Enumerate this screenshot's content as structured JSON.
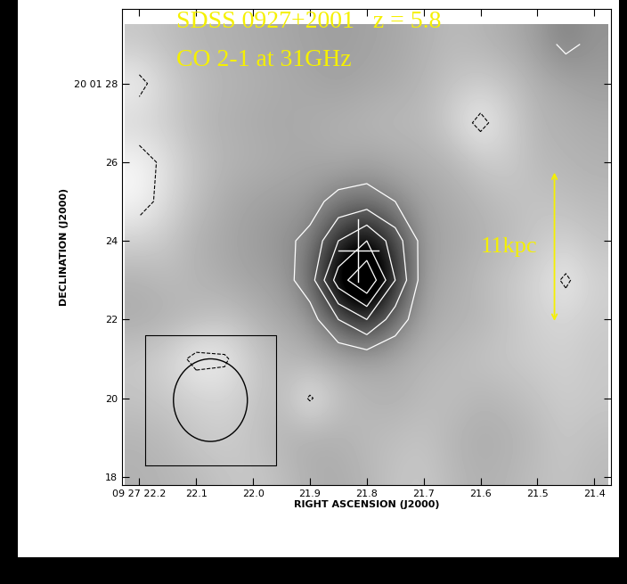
{
  "chart_data": {
    "type": "contour",
    "title": "SDSS 0927+2001   z = 5.8",
    "subtitle": "CO 2-1 at 31GHz",
    "x_label": "RIGHT ASCENSION (J2000)",
    "y_label": "DECLINATION (J2000)",
    "xlim": [
      22.23,
      21.37
    ],
    "ylim": [
      17.8,
      29.9
    ],
    "xticks": [
      {
        "value": 22.2,
        "label": "09 27 22.2"
      },
      22.1,
      22.0,
      21.9,
      21.8,
      21.7,
      21.6,
      21.5,
      21.4
    ],
    "yticks": [
      {
        "value": 28,
        "label": "20 01 28"
      },
      26,
      24,
      22,
      20,
      18
    ],
    "x": [
      22.2,
      22.15,
      22.1,
      22.05,
      22.0,
      21.95,
      21.9,
      21.85,
      21.8,
      21.75,
      21.7,
      21.65,
      21.6,
      21.55,
      21.5,
      21.45,
      21.4
    ],
    "y": [
      18,
      19,
      20,
      21,
      22,
      23,
      24,
      25,
      26,
      27,
      28,
      29
    ],
    "cells": [
      [
        0.2,
        0.1,
        0.0,
        -0.2,
        -0.3,
        -0.1,
        0.2,
        0.3,
        0.1,
        -0.2,
        -0.3,
        0.0,
        0.2,
        0.1,
        -0.1,
        -0.2,
        0.0
      ],
      [
        0.1,
        0.0,
        -0.3,
        -0.4,
        -0.2,
        0.1,
        0.3,
        0.2,
        0.0,
        -0.1,
        -0.2,
        0.1,
        0.3,
        0.2,
        0.0,
        -0.3,
        -0.1
      ],
      [
        -0.2,
        -0.3,
        -0.5,
        -0.6,
        -0.3,
        0.0,
        -1.1,
        -0.2,
        0.1,
        0.2,
        0.0,
        -0.1,
        0.1,
        0.0,
        -0.2,
        -0.4,
        -0.3
      ],
      [
        -0.3,
        -0.6,
        -1.2,
        -1.1,
        -0.4,
        0.0,
        0.2,
        0.3,
        0.4,
        0.3,
        0.1,
        0.0,
        -0.2,
        -0.3,
        -0.4,
        -0.5,
        -0.3
      ],
      [
        0.3,
        0.2,
        0.0,
        -0.2,
        0.1,
        0.4,
        0.6,
        2.0,
        3.0,
        1.5,
        0.4,
        0.2,
        0.1,
        -0.2,
        -0.5,
        -0.6,
        -0.4
      ],
      [
        0.2,
        0.0,
        0.1,
        0.3,
        0.5,
        0.6,
        1.5,
        4.5,
        6.0,
        3.0,
        0.5,
        0.3,
        0.0,
        -0.3,
        -0.6,
        -1.1,
        -0.5
      ],
      [
        -0.5,
        -0.3,
        0.2,
        0.4,
        0.6,
        0.8,
        1.2,
        3.0,
        4.0,
        2.5,
        0.6,
        0.4,
        0.2,
        0.0,
        -0.3,
        -0.5,
        -0.2
      ],
      [
        -1.3,
        -0.7,
        -0.1,
        0.3,
        0.5,
        0.6,
        0.7,
        1.3,
        1.5,
        1.0,
        0.5,
        0.3,
        0.1,
        -0.1,
        -0.2,
        -0.1,
        0.0
      ],
      [
        -1.3,
        -0.8,
        -0.2,
        0.1,
        0.2,
        0.3,
        0.4,
        0.3,
        0.4,
        0.3,
        0.2,
        0.1,
        -0.3,
        -0.4,
        0.0,
        0.1,
        0.2
      ],
      [
        -0.6,
        -0.4,
        0.0,
        0.2,
        0.3,
        0.4,
        0.3,
        0.2,
        0.1,
        0.0,
        0.0,
        -0.5,
        -1.2,
        -0.5,
        0.1,
        0.2,
        0.3
      ],
      [
        -1.2,
        -0.5,
        -0.1,
        0.1,
        0.2,
        0.3,
        0.4,
        0.5,
        0.4,
        0.3,
        0.1,
        -0.2,
        -0.4,
        -0.2,
        0.2,
        0.4,
        0.6
      ],
      [
        -0.3,
        -0.1,
        0.1,
        0.2,
        0.3,
        0.4,
        0.5,
        0.6,
        0.5,
        0.4,
        0.2,
        0.0,
        0.1,
        0.3,
        0.6,
        1.2,
        0.8
      ]
    ],
    "color_range": [
      -1.5,
      4.0
    ],
    "contour_levels": [
      1,
      2,
      3,
      4,
      5
    ],
    "negative_levels": [
      -1
    ],
    "cross": {
      "x": 21.815,
      "y": 23.75,
      "dx": 0.035,
      "dy": 0.8
    },
    "beam": {
      "x": 22.075,
      "y": 19.95,
      "width": 0.13,
      "height": 2.1
    },
    "beam_box": {
      "x": [
        22.19,
        21.96
      ],
      "y": [
        18.3,
        21.6
      ]
    },
    "scale_bar": {
      "x": 21.47,
      "y": [
        21.9,
        25.8
      ],
      "label": "11kpc"
    }
  }
}
